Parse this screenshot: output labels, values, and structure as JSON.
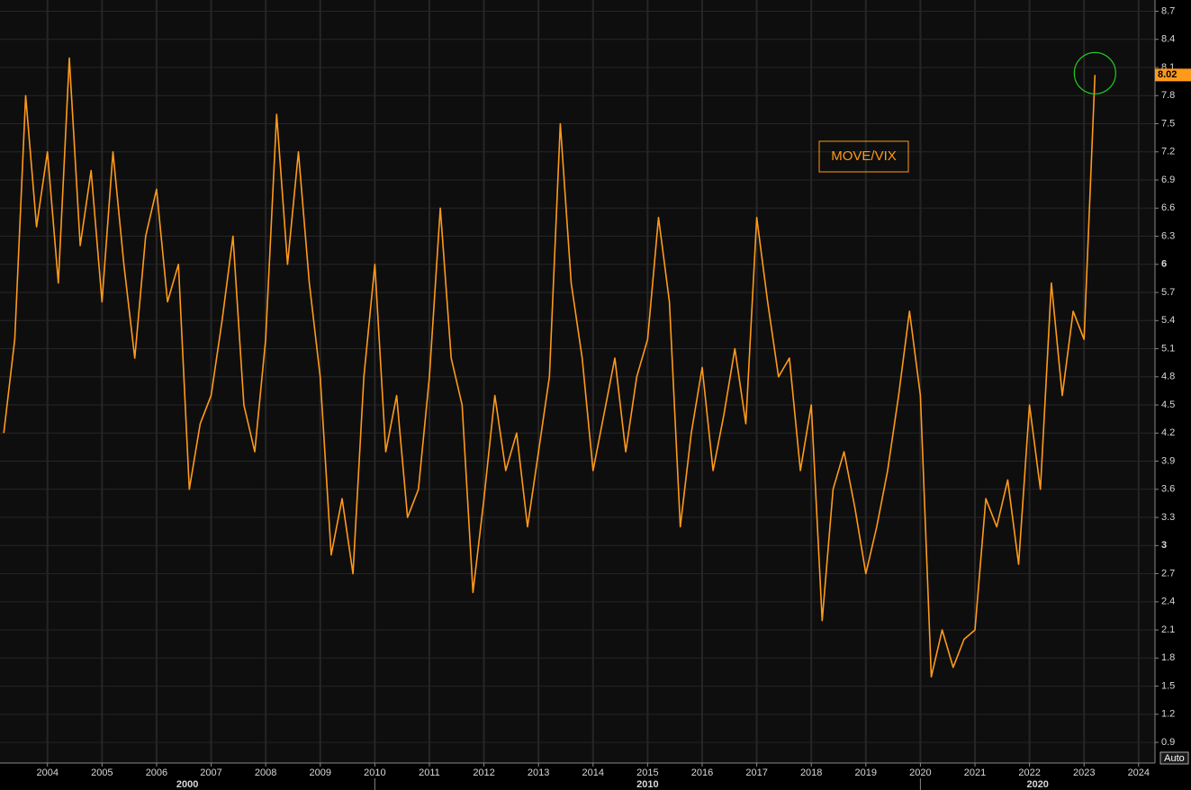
{
  "chart_data": {
    "type": "line",
    "annotation": "MOVE/VIX",
    "auto_button": "Auto",
    "xlim": [
      2003.13,
      2024.3
    ],
    "ylim": [
      0.68,
      8.82
    ],
    "xticks": [
      2004,
      2005,
      2006,
      2007,
      2008,
      2009,
      2010,
      2011,
      2012,
      2013,
      2014,
      2015,
      2016,
      2017,
      2018,
      2019,
      2020,
      2021,
      2022,
      2023,
      2024
    ],
    "x2ticks": [
      2000,
      2010,
      2020
    ],
    "yticks": [
      0.9,
      1.2,
      1.5,
      1.8,
      2.1,
      2.4,
      2.7,
      3,
      3.3,
      3.6,
      3.9,
      4.2,
      4.5,
      4.8,
      5.1,
      5.4,
      5.7,
      6,
      6.3,
      6.6,
      6.9,
      7.2,
      7.5,
      7.8,
      8.1,
      8.4,
      8.7
    ],
    "grid": true,
    "series": [
      {
        "color": "#ff9a1a",
        "x": [
          2003.2,
          2003.4,
          2003.6,
          2003.8,
          2004.0,
          2004.2,
          2004.4,
          2004.6,
          2004.8,
          2005.0,
          2005.2,
          2005.4,
          2005.6,
          2005.8,
          2006.0,
          2006.2,
          2006.4,
          2006.6,
          2006.8,
          2007.0,
          2007.2,
          2007.4,
          2007.6,
          2007.8,
          2008.0,
          2008.2,
          2008.4,
          2008.6,
          2008.8,
          2009.0,
          2009.2,
          2009.4,
          2009.6,
          2009.8,
          2010.0,
          2010.2,
          2010.4,
          2010.6,
          2010.8,
          2011.0,
          2011.2,
          2011.4,
          2011.6,
          2011.8,
          2012.0,
          2012.2,
          2012.4,
          2012.6,
          2012.8,
          2013.0,
          2013.2,
          2013.4,
          2013.6,
          2013.8,
          2014.0,
          2014.2,
          2014.4,
          2014.6,
          2014.8,
          2015.0,
          2015.2,
          2015.4,
          2015.6,
          2015.8,
          2016.0,
          2016.2,
          2016.4,
          2016.6,
          2016.8,
          2017.0,
          2017.2,
          2017.4,
          2017.6,
          2017.8,
          2018.0,
          2018.2,
          2018.4,
          2018.6,
          2018.8,
          2019.0,
          2019.2,
          2019.4,
          2019.6,
          2019.8,
          2020.0,
          2020.2,
          2020.4,
          2020.6,
          2020.8,
          2021.0,
          2021.2,
          2021.4,
          2021.6,
          2021.8,
          2022.0,
          2022.2,
          2022.4,
          2022.6,
          2022.8,
          2023.0,
          2023.2
        ],
        "values": [
          4.2,
          5.2,
          7.8,
          6.4,
          7.2,
          5.8,
          8.2,
          6.2,
          7.0,
          5.6,
          7.2,
          6.0,
          5.0,
          6.3,
          6.8,
          5.6,
          6.0,
          3.6,
          4.3,
          4.6,
          5.4,
          6.3,
          4.5,
          4.0,
          5.2,
          7.6,
          6.0,
          7.2,
          5.8,
          4.8,
          2.9,
          3.5,
          2.7,
          4.8,
          6.0,
          4.0,
          4.6,
          3.3,
          3.6,
          4.8,
          6.6,
          5.0,
          4.5,
          2.5,
          3.5,
          4.6,
          3.8,
          4.2,
          3.2,
          4.0,
          4.8,
          7.5,
          5.8,
          5.0,
          3.8,
          4.4,
          5.0,
          4.0,
          4.8,
          5.2,
          6.5,
          5.6,
          3.2,
          4.2,
          4.9,
          3.8,
          4.4,
          5.1,
          4.3,
          6.5,
          5.6,
          4.8,
          5.0,
          3.8,
          4.5,
          2.2,
          3.6,
          4.0,
          3.4,
          2.7,
          3.2,
          3.8,
          4.6,
          5.5,
          4.6,
          1.6,
          2.1,
          1.7,
          2.0,
          2.1,
          3.5,
          3.2,
          3.7,
          2.8,
          4.5,
          3.6,
          5.8,
          4.6,
          5.5,
          5.2,
          8.02
        ]
      }
    ]
  }
}
